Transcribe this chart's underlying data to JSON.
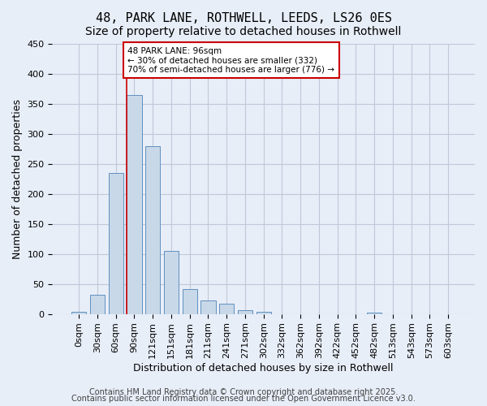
{
  "title_line1": "48, PARK LANE, ROTHWELL, LEEDS, LS26 0ES",
  "title_line2": "Size of property relative to detached houses in Rothwell",
  "xlabel": "Distribution of detached houses by size in Rothwell",
  "ylabel": "Number of detached properties",
  "bar_labels": [
    "0sqm",
    "30sqm",
    "60sqm",
    "90sqm",
    "121sqm",
    "151sqm",
    "181sqm",
    "211sqm",
    "241sqm",
    "271sqm",
    "302sqm",
    "332sqm",
    "362sqm",
    "392sqm",
    "422sqm",
    "452sqm",
    "482sqm",
    "513sqm",
    "543sqm",
    "573sqm",
    "603sqm"
  ],
  "bar_values": [
    3,
    32,
    235,
    365,
    280,
    105,
    42,
    22,
    17,
    6,
    4,
    0,
    0,
    0,
    0,
    0,
    2,
    0,
    0,
    0,
    0
  ],
  "bar_color": "#c8d8e8",
  "bar_edge_color": "#6090c0",
  "grid_color": "#c0c8d8",
  "background_color": "#e8eef8",
  "vline_x": 2.6,
  "vline_color": "#cc0000",
  "annotation_text": "48 PARK LANE: 96sqm\n← 30% of detached houses are smaller (332)\n70% of semi-detached houses are larger (776) →",
  "annotation_box_color": "#ffffff",
  "annotation_box_edge_color": "#cc0000",
  "footer_line1": "Contains HM Land Registry data © Crown copyright and database right 2025.",
  "footer_line2": "Contains public sector information licensed under the Open Government Licence v3.0.",
  "ylim": [
    0,
    450
  ],
  "yticks": [
    0,
    50,
    100,
    150,
    200,
    250,
    300,
    350,
    400,
    450
  ],
  "title_fontsize": 11,
  "subtitle_fontsize": 10,
  "axis_label_fontsize": 9,
  "tick_fontsize": 8,
  "footer_fontsize": 7
}
